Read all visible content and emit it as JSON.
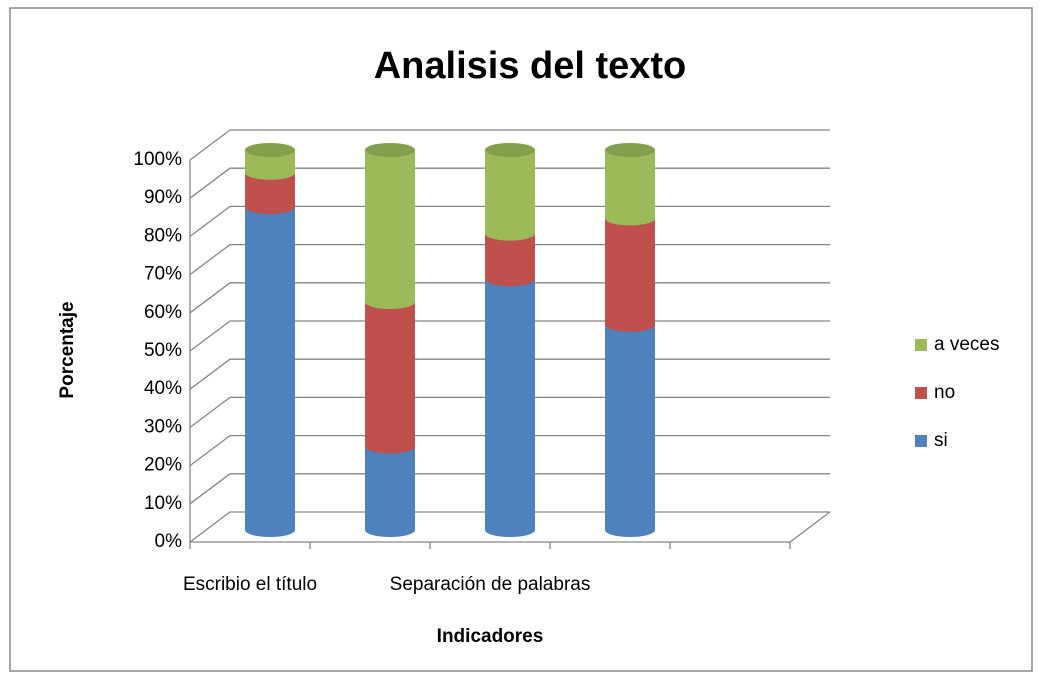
{
  "chart_data": {
    "type": "bar",
    "stacked": true,
    "title": "Analisis del texto",
    "x_label": "Indicadores",
    "y_label": "Porcentaje",
    "categories": [
      "Escribio el título",
      null,
      "Separación de palabras",
      null,
      null
    ],
    "series": [
      {
        "name": "si",
        "color": "#4f81bd",
        "values": [
          85,
          22,
          66,
          54,
          null
        ]
      },
      {
        "name": "no",
        "color": "#c0504d",
        "values": [
          9,
          38,
          12,
          28,
          null
        ]
      },
      {
        "name": "a veces",
        "color": "#9bbb59",
        "values": [
          6,
          40,
          22,
          18,
          null
        ]
      }
    ],
    "ylim": [
      0,
      100
    ],
    "yticks": [
      {
        "value": 0,
        "label": "0%"
      },
      {
        "value": 10,
        "label": "10%"
      },
      {
        "value": 20,
        "label": "20%"
      },
      {
        "value": 30,
        "label": "30%"
      },
      {
        "value": 40,
        "label": "40%"
      },
      {
        "value": 50,
        "label": "50%"
      },
      {
        "value": 60,
        "label": "60%"
      },
      {
        "value": 70,
        "label": "70%"
      },
      {
        "value": 80,
        "label": "80%"
      },
      {
        "value": 90,
        "label": "90%"
      },
      {
        "value": 100,
        "label": "100%"
      }
    ],
    "grid": true,
    "legend": "right"
  }
}
